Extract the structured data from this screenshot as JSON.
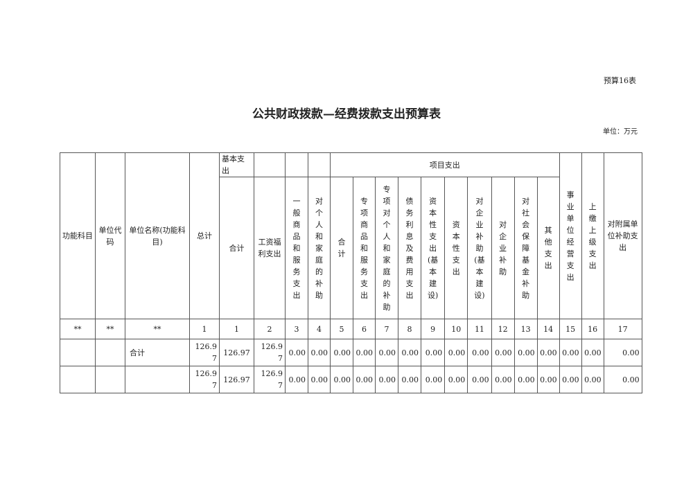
{
  "form_no": "预算16表",
  "title": "公共财政拨款—经费拨款支出预算表",
  "unit": "单位：万元",
  "headers": {
    "func": "功能科目",
    "code": "单位代码",
    "name": "单位名称(功能科目)",
    "total": "总计",
    "basic": "基本支出",
    "project": "项目支出",
    "basic_cols": [
      "合计",
      "工资福利支出",
      "一般商品和服务支出",
      "对个人和家庭的补助"
    ],
    "project_cols": [
      "合计",
      "专项商品和服务支出",
      "专项对个人和家庭的补助",
      "债务利息及费用支出",
      "资本性支出(基本建设)",
      "资本性支出",
      "对企业补助(基本建设)",
      "对企业补助",
      "对社会保障基金补助",
      "其他支出"
    ],
    "biz": "事业单位经营支出",
    "upper": "上缴上级支出",
    "sub": "对附属单位补助支出"
  },
  "col_numbers": [
    "**",
    "**",
    "**",
    "1",
    "1",
    "2",
    "3",
    "4",
    "5",
    "6",
    "7",
    "8",
    "9",
    "10",
    "11",
    "12",
    "13",
    "14",
    "15",
    "16",
    "17"
  ],
  "rows": [
    {
      "func": "",
      "code": "",
      "name": "合计",
      "values": [
        "126.97",
        "126.97",
        "126.97",
        "0.00",
        "0.00",
        "0.00",
        "0.00",
        "0.00",
        "0.00",
        "0.00",
        "0.00",
        "0.00",
        "0.00",
        "0.00",
        "0.00",
        "0.00",
        "0.00",
        "0.00"
      ]
    },
    {
      "func": "",
      "code": "",
      "name": "",
      "values": [
        "126.97",
        "126.97",
        "126.97",
        "0.00",
        "0.00",
        "0.00",
        "0.00",
        "0.00",
        "0.00",
        "0.00",
        "0.00",
        "0.00",
        "0.00",
        "0.00",
        "0.00",
        "0.00",
        "0.00",
        "0.00"
      ]
    }
  ]
}
